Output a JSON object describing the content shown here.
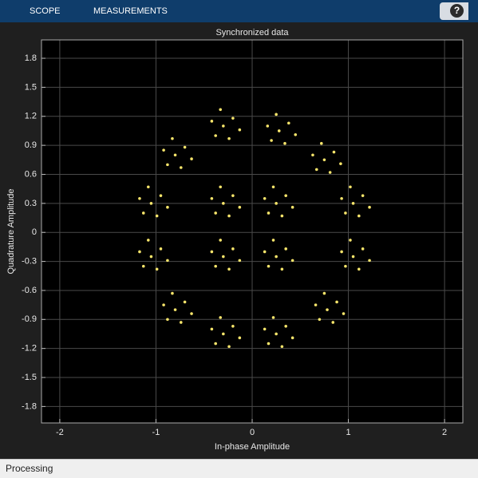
{
  "toolbar": {
    "tabs": [
      "SCOPE",
      "MEASUREMENTS"
    ],
    "help": "?"
  },
  "status": "Processing",
  "chart_data": {
    "type": "scatter",
    "title": "Synchronized data",
    "x_label": "In-phase Amplitude",
    "y_label": "Quadrature Amplitude",
    "color": "#f7e56b",
    "grid": true,
    "xlim": [
      -2.19,
      2.19
    ],
    "ylim": [
      -1.97,
      1.99
    ],
    "xticks": [
      -2,
      -1,
      0,
      1,
      2
    ],
    "yticks": [
      -1.8,
      -1.5,
      -1.2,
      -0.9,
      -0.6,
      -0.3,
      0,
      0.3,
      0.6,
      0.9,
      1.2,
      1.5,
      1.8
    ],
    "x": [
      -0.3,
      -0.2,
      -0.42,
      -0.24,
      -0.38,
      -0.13,
      -0.33,
      0.28,
      0.38,
      0.16,
      0.34,
      0.2,
      0.45,
      0.25,
      0.75,
      0.85,
      0.63,
      0.81,
      0.67,
      0.92,
      0.72,
      1.05,
      1.15,
      0.93,
      1.11,
      0.97,
      1.22,
      1.02,
      1.05,
      1.15,
      0.93,
      1.11,
      0.97,
      1.22,
      1.02,
      0.78,
      0.88,
      0.66,
      0.84,
      0.7,
      0.95,
      0.75,
      0.25,
      0.35,
      0.13,
      0.31,
      0.17,
      0.42,
      0.22,
      -0.3,
      -0.2,
      -0.42,
      -0.24,
      -0.38,
      -0.13,
      -0.33,
      -0.8,
      -0.7,
      -0.92,
      -0.74,
      -0.88,
      -0.63,
      -0.83,
      -1.05,
      -0.95,
      -1.17,
      -0.99,
      -1.13,
      -0.88,
      -1.08,
      -1.05,
      -0.95,
      -1.17,
      -0.99,
      -1.13,
      -0.88,
      -1.08,
      -0.8,
      -0.7,
      -0.92,
      -0.74,
      -0.88,
      -0.63,
      -0.83,
      -0.3,
      -0.2,
      -0.42,
      -0.24,
      -0.38,
      -0.13,
      -0.33,
      0.25,
      0.35,
      0.13,
      0.31,
      0.17,
      0.42,
      0.22,
      -0.3,
      -0.2,
      -0.42,
      -0.24,
      -0.38,
      -0.13,
      -0.33,
      0.25,
      0.35,
      0.13,
      0.31,
      0.17,
      0.42,
      0.22
    ],
    "values": [
      1.1,
      1.18,
      1.15,
      0.97,
      1.0,
      1.06,
      1.27,
      1.05,
      1.13,
      1.1,
      0.92,
      0.95,
      1.01,
      1.22,
      0.75,
      0.83,
      0.8,
      0.62,
      0.65,
      0.71,
      0.92,
      0.3,
      0.38,
      0.35,
      0.17,
      0.2,
      0.26,
      0.47,
      -0.25,
      -0.17,
      -0.2,
      -0.38,
      -0.35,
      -0.29,
      -0.08,
      -0.8,
      -0.72,
      -0.75,
      -0.93,
      -0.9,
      -0.84,
      -0.63,
      -1.05,
      -0.97,
      -1.0,
      -1.18,
      -1.15,
      -1.09,
      -0.88,
      -1.05,
      -0.97,
      -1.0,
      -1.18,
      -1.15,
      -1.09,
      -0.88,
      -0.8,
      -0.72,
      -0.75,
      -0.93,
      -0.9,
      -0.84,
      -0.63,
      -0.25,
      -0.17,
      -0.2,
      -0.38,
      -0.35,
      -0.29,
      -0.08,
      0.3,
      0.38,
      0.35,
      0.17,
      0.2,
      0.26,
      0.47,
      0.8,
      0.88,
      0.85,
      0.67,
      0.7,
      0.76,
      0.97,
      0.3,
      0.38,
      0.35,
      0.17,
      0.2,
      0.26,
      0.47,
      0.3,
      0.38,
      0.35,
      0.17,
      0.2,
      0.26,
      0.47,
      -0.25,
      -0.17,
      -0.2,
      -0.38,
      -0.35,
      -0.29,
      -0.08,
      -0.25,
      -0.17,
      -0.2,
      -0.38,
      -0.35,
      -0.29,
      -0.08
    ]
  }
}
